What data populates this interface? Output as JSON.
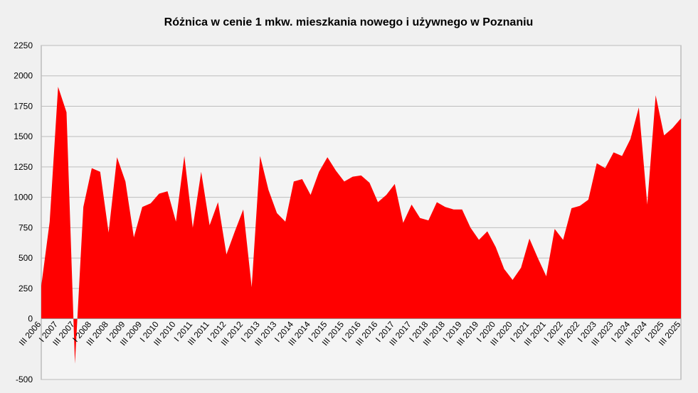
{
  "chart_data": {
    "type": "area",
    "title": "Różnica w cenie 1 mkw. mieszkania nowego i używnego w Poznaniu",
    "categories": [
      "III 2006",
      null,
      "I 2007",
      null,
      "III 2007",
      null,
      "I 2008",
      null,
      "III 2008",
      null,
      "I 2009",
      null,
      "III 2009",
      null,
      "I 2010",
      null,
      "III 2010",
      null,
      "I 2011",
      null,
      "III 2011",
      null,
      "I 2012",
      null,
      "III 2012",
      null,
      "I 2013",
      null,
      "III 2013",
      null,
      "I 2014",
      null,
      "III 2014",
      null,
      "I 2015",
      null,
      "III 2015",
      null,
      "I 2016",
      null,
      "III 2016",
      null,
      "I 2017",
      null,
      "III 2017",
      null,
      "I 2018",
      null,
      "III 2018",
      null,
      "I 2019",
      null,
      "III 2019",
      null,
      "I 2020",
      null,
      "III 2020",
      null,
      "I 2021",
      null,
      "III 2021",
      null,
      "I 2022",
      null,
      "III 2022",
      null,
      "I 2023",
      null,
      "III 2023",
      null,
      "I 2024",
      null,
      "III 2024",
      null,
      "I 2025",
      null,
      "III 2025"
    ],
    "values": [
      270,
      800,
      1910,
      1700,
      -370,
      920,
      1240,
      1210,
      710,
      1330,
      1130,
      670,
      920,
      950,
      1030,
      1050,
      800,
      1340,
      750,
      1210,
      770,
      960,
      530,
      720,
      900,
      260,
      1340,
      1060,
      870,
      800,
      1130,
      1150,
      1020,
      1210,
      1330,
      1220,
      1130,
      1170,
      1180,
      1120,
      960,
      1020,
      1110,
      790,
      940,
      830,
      810,
      960,
      920,
      900,
      900,
      750,
      650,
      720,
      590,
      410,
      320,
      420,
      660,
      500,
      350,
      740,
      650,
      910,
      930,
      980,
      1280,
      1240,
      1370,
      1340,
      1480,
      1740,
      940,
      1840,
      1510,
      1570,
      1650
    ],
    "color": "#ff0000",
    "ylim": [
      -500,
      2250
    ],
    "yticks": [
      -500,
      0,
      250,
      500,
      750,
      1000,
      1250,
      1500,
      1750,
      2000,
      2250
    ],
    "grid": true
  }
}
